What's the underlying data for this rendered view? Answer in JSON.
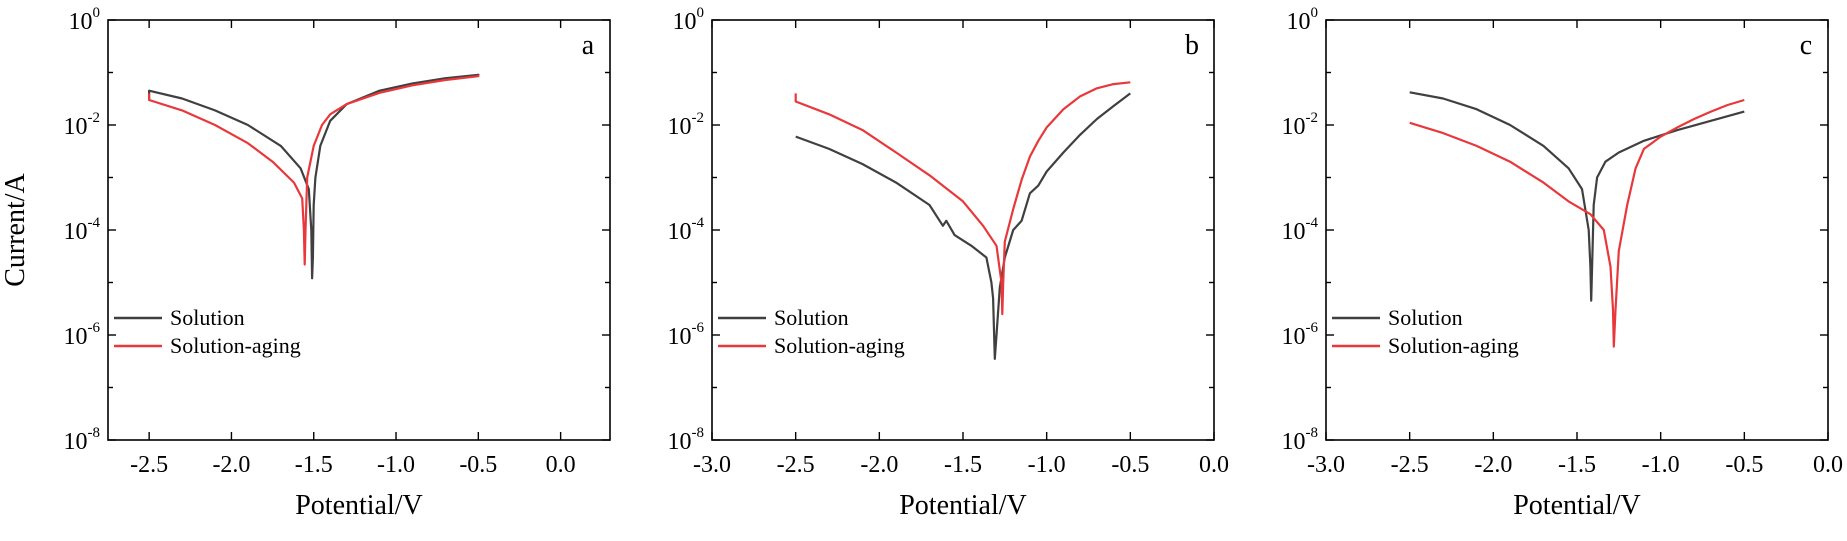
{
  "chart_data": [
    {
      "type": "line",
      "panel": "a",
      "xlabel": "Potential/V",
      "ylabel": "Current/A",
      "xlim": [
        -2.75,
        0.3
      ],
      "ylim": [
        1e-08,
        1
      ],
      "yscale": "log",
      "xticks": [
        "-2.5",
        "-2.0",
        "-1.5",
        "-1.0",
        "-0.5",
        "0.0"
      ],
      "xtick_values": [
        -2.5,
        -2.0,
        -1.5,
        -1.0,
        -0.5,
        0.0
      ],
      "yticks": [
        {
          "base": "10",
          "exp": "-8",
          "value": 1e-08
        },
        {
          "base": "10",
          "exp": "-6",
          "value": 1e-06
        },
        {
          "base": "10",
          "exp": "-4",
          "value": 0.0001
        },
        {
          "base": "10",
          "exp": "-2",
          "value": 0.01
        },
        {
          "base": "10",
          "exp": "0",
          "value": 1
        }
      ],
      "legend_position": "bottom-left",
      "colors": {
        "Solution": "#404040",
        "Solution-aging": "#e8383b"
      },
      "series": [
        {
          "name": "Solution",
          "color": "#404040",
          "x": [
            -2.5,
            -2.5,
            -2.3,
            -2.1,
            -1.9,
            -1.7,
            -1.58,
            -1.53,
            -1.515,
            -1.51,
            -1.505,
            -1.5,
            -1.49,
            -1.46,
            -1.4,
            -1.3,
            -1.1,
            -0.9,
            -0.7,
            -0.5,
            -0.5
          ],
          "y": [
            0.03,
            0.045,
            0.032,
            0.019,
            0.01,
            0.004,
            0.0015,
            0.0006,
            0.0001,
            1.2e-05,
            3e-05,
            0.0003,
            0.001,
            0.004,
            0.012,
            0.025,
            0.045,
            0.062,
            0.078,
            0.09,
            0.095
          ]
        },
        {
          "name": "Solution-aging",
          "color": "#e8383b",
          "x": [
            -2.5,
            -2.5,
            -2.3,
            -2.1,
            -1.9,
            -1.75,
            -1.62,
            -1.57,
            -1.56,
            -1.555,
            -1.55,
            -1.54,
            -1.5,
            -1.45,
            -1.4,
            -1.3,
            -1.1,
            -0.9,
            -0.7,
            -0.5,
            -0.5
          ],
          "y": [
            0.04,
            0.03,
            0.019,
            0.01,
            0.0045,
            0.002,
            0.0008,
            0.0004,
            0.0001,
            2.2e-05,
            0.0001,
            0.001,
            0.004,
            0.01,
            0.016,
            0.025,
            0.041,
            0.057,
            0.072,
            0.085,
            0.09
          ]
        }
      ]
    },
    {
      "type": "line",
      "panel": "b",
      "xlabel": "Potential/V",
      "ylabel": "",
      "xlim": [
        -3.0,
        0.0
      ],
      "ylim": [
        1e-08,
        1
      ],
      "yscale": "log",
      "xticks": [
        "-3.0",
        "-2.5",
        "-2.0",
        "-1.5",
        "-1.0",
        "-0.5",
        "0.0"
      ],
      "xtick_values": [
        -3.0,
        -2.5,
        -2.0,
        -1.5,
        -1.0,
        -0.5,
        0.0
      ],
      "yticks": [
        {
          "base": "10",
          "exp": "-8",
          "value": 1e-08
        },
        {
          "base": "10",
          "exp": "-6",
          "value": 1e-06
        },
        {
          "base": "10",
          "exp": "-4",
          "value": 0.0001
        },
        {
          "base": "10",
          "exp": "-2",
          "value": 0.01
        },
        {
          "base": "10",
          "exp": "0",
          "value": 1
        }
      ],
      "legend_position": "bottom-left",
      "colors": {
        "Solution": "#404040",
        "Solution-aging": "#e8383b"
      },
      "series": [
        {
          "name": "Solution",
          "color": "#404040",
          "x": [
            -2.5,
            -2.3,
            -2.1,
            -1.9,
            -1.7,
            -1.62,
            -1.6,
            -1.55,
            -1.45,
            -1.36,
            -1.33,
            -1.32,
            -1.31,
            -1.3,
            -1.28,
            -1.25,
            -1.2,
            -1.15,
            -1.1,
            -1.05,
            -1.0,
            -0.9,
            -0.8,
            -0.7,
            -0.6,
            -0.5
          ],
          "y": [
            0.006,
            0.0035,
            0.0018,
            0.0008,
            0.0003,
            0.00012,
            0.00015,
            8e-05,
            5e-05,
            3e-05,
            1e-05,
            5e-06,
            3.5e-07,
            1e-06,
            8e-06,
            3e-05,
            0.0001,
            0.00015,
            0.0005,
            0.0007,
            0.0013,
            0.003,
            0.0065,
            0.013,
            0.023,
            0.04
          ]
        },
        {
          "name": "Solution-aging",
          "color": "#e8383b",
          "x": [
            -2.5,
            -2.5,
            -2.3,
            -2.1,
            -1.9,
            -1.7,
            -1.5,
            -1.38,
            -1.3,
            -1.27,
            -1.265,
            -1.26,
            -1.25,
            -1.2,
            -1.15,
            -1.1,
            -1.05,
            -1.0,
            -0.9,
            -0.8,
            -0.7,
            -0.6,
            -0.5
          ],
          "y": [
            0.04,
            0.028,
            0.016,
            0.008,
            0.003,
            0.0011,
            0.00035,
            0.00012,
            5e-05,
            1e-05,
            2.5e-06,
            1e-05,
            6e-05,
            0.00025,
            0.0009,
            0.0025,
            0.005,
            0.009,
            0.02,
            0.035,
            0.05,
            0.06,
            0.065
          ]
        }
      ]
    },
    {
      "type": "line",
      "panel": "c",
      "xlabel": "Potential/V",
      "ylabel": "",
      "xlim": [
        -3.0,
        0.0
      ],
      "ylim": [
        1e-08,
        1
      ],
      "yscale": "log",
      "xticks": [
        "-3.0",
        "-2.5",
        "-2.0",
        "-1.5",
        "-1.0",
        "-0.5",
        "0.0"
      ],
      "xtick_values": [
        -3.0,
        -2.5,
        -2.0,
        -1.5,
        -1.0,
        -0.5,
        0.0
      ],
      "yticks": [
        {
          "base": "10",
          "exp": "-8",
          "value": 1e-08
        },
        {
          "base": "10",
          "exp": "-6",
          "value": 1e-06
        },
        {
          "base": "10",
          "exp": "-4",
          "value": 0.0001
        },
        {
          "base": "10",
          "exp": "-2",
          "value": 0.01
        },
        {
          "base": "10",
          "exp": "0",
          "value": 1
        }
      ],
      "legend_position": "bottom-left",
      "colors": {
        "Solution": "#404040",
        "Solution-aging": "#e8383b"
      },
      "series": [
        {
          "name": "Solution",
          "color": "#404040",
          "x": [
            -2.5,
            -2.3,
            -2.1,
            -1.9,
            -1.7,
            -1.55,
            -1.47,
            -1.43,
            -1.42,
            -1.415,
            -1.41,
            -1.4,
            -1.38,
            -1.33,
            -1.25,
            -1.1,
            -0.9,
            -0.7,
            -0.5
          ],
          "y": [
            0.042,
            0.032,
            0.02,
            0.01,
            0.004,
            0.0015,
            0.0006,
            0.0001,
            2e-05,
            4.5e-06,
            2e-05,
            0.0003,
            0.001,
            0.002,
            0.003,
            0.005,
            0.008,
            0.012,
            0.018
          ]
        },
        {
          "name": "Solution-aging",
          "color": "#e8383b",
          "x": [
            -2.5,
            -2.3,
            -2.1,
            -1.9,
            -1.7,
            -1.55,
            -1.42,
            -1.34,
            -1.3,
            -1.285,
            -1.28,
            -1.27,
            -1.25,
            -1.2,
            -1.15,
            -1.1,
            -1.0,
            -0.9,
            -0.8,
            -0.7,
            -0.6,
            -0.5
          ],
          "y": [
            0.011,
            0.007,
            0.004,
            0.002,
            0.0008,
            0.00035,
            0.0002,
            0.0001,
            2e-05,
            3e-06,
            6e-07,
            3e-06,
            4e-05,
            0.0003,
            0.0015,
            0.0035,
            0.006,
            0.009,
            0.013,
            0.018,
            0.024,
            0.03
          ]
        }
      ]
    }
  ]
}
